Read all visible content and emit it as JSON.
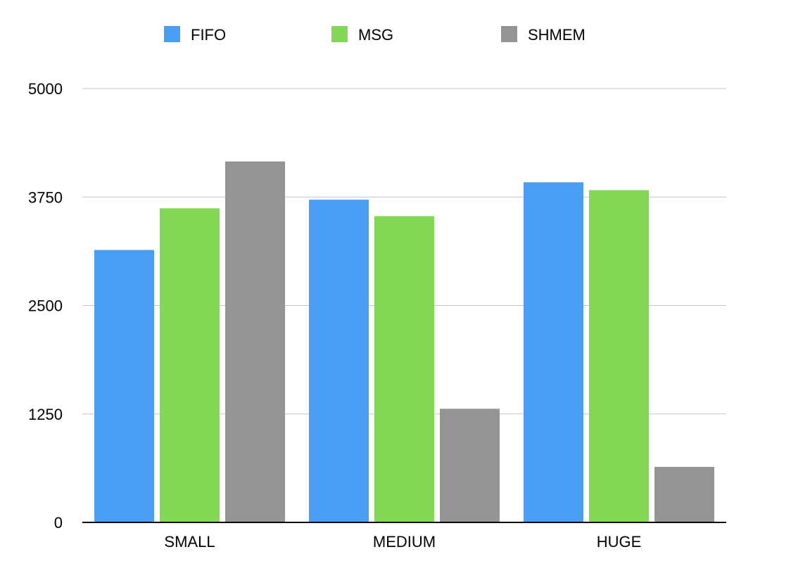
{
  "chart_data": {
    "type": "bar",
    "title": "",
    "xlabel": "",
    "ylabel": "",
    "categories": [
      "SMALL",
      "MEDIUM",
      "HUGE"
    ],
    "series": [
      {
        "name": "FIFO",
        "color": "#4A9FF5",
        "values": [
          3140,
          3720,
          3920
        ]
      },
      {
        "name": "MSG",
        "color": "#82D855",
        "values": [
          3620,
          3530,
          3830
        ]
      },
      {
        "name": "SHMEM",
        "color": "#949494",
        "values": [
          4160,
          1310,
          640
        ]
      }
    ],
    "ylim": [
      0,
      5000
    ],
    "yticks": [
      "0",
      "1250",
      "2500",
      "3750",
      "5000"
    ],
    "ytick_values": [
      0,
      1250,
      2500,
      3750,
      5000
    ],
    "grid": true,
    "legend_position": "top"
  }
}
